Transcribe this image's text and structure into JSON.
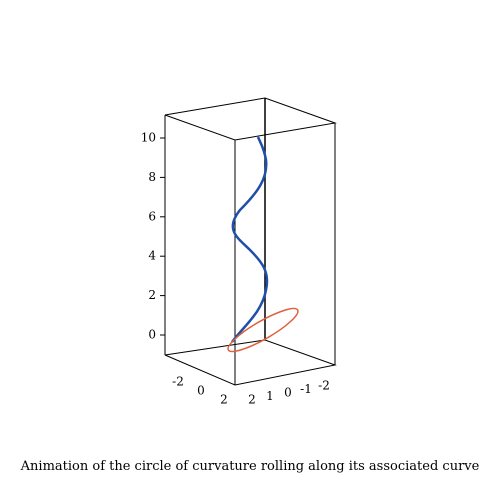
{
  "figure": {
    "zticks": [
      0,
      2,
      4,
      6,
      8,
      10
    ],
    "xticks": [
      -2,
      0,
      2
    ],
    "yticks": [
      2,
      1,
      0,
      -1,
      -2
    ],
    "caption": "Animation of the circle of curvature rolling along its associated curve"
  }
}
